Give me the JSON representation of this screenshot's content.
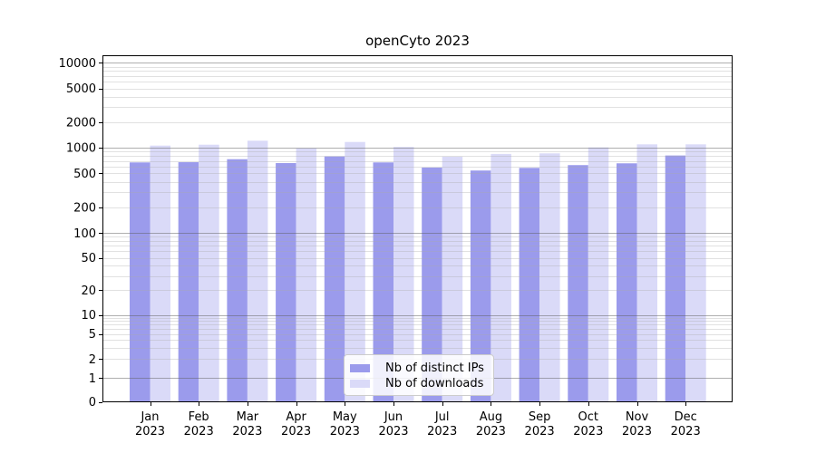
{
  "chart_data": {
    "type": "bar",
    "title": "openCyto 2023",
    "categories": [
      "Jan",
      "Feb",
      "Mar",
      "Apr",
      "May",
      "Jun",
      "Jul",
      "Aug",
      "Sep",
      "Oct",
      "Nov",
      "Dec"
    ],
    "category_sublabel": "2023",
    "series": [
      {
        "name": "Nb of distinct IPs",
        "color": "#9b9bec",
        "values": [
          672,
          676,
          733,
          660,
          790,
          672,
          585,
          540,
          580,
          625,
          656,
          810
        ]
      },
      {
        "name": "Nb of downloads",
        "color": "#dadaf8",
        "values": [
          1058,
          1084,
          1208,
          985,
          1167,
          1020,
          785,
          845,
          858,
          1007,
          1095,
          1095
        ]
      }
    ],
    "y_axis": {
      "scale": "symlog",
      "tick_values": [
        10000,
        5000,
        2000,
        1000,
        500,
        200,
        100,
        50,
        20,
        10,
        5,
        2,
        1,
        0
      ],
      "ylim": [
        0,
        10000
      ]
    },
    "x_axis": {
      "tick_years": "2023"
    },
    "legend": {
      "position": "lower center"
    },
    "grid": {
      "enabled": true,
      "major_color": "#b0b0b0",
      "minor_color": "#e5e5e5"
    },
    "axis_color": "#000000",
    "background": "#ffffff"
  }
}
